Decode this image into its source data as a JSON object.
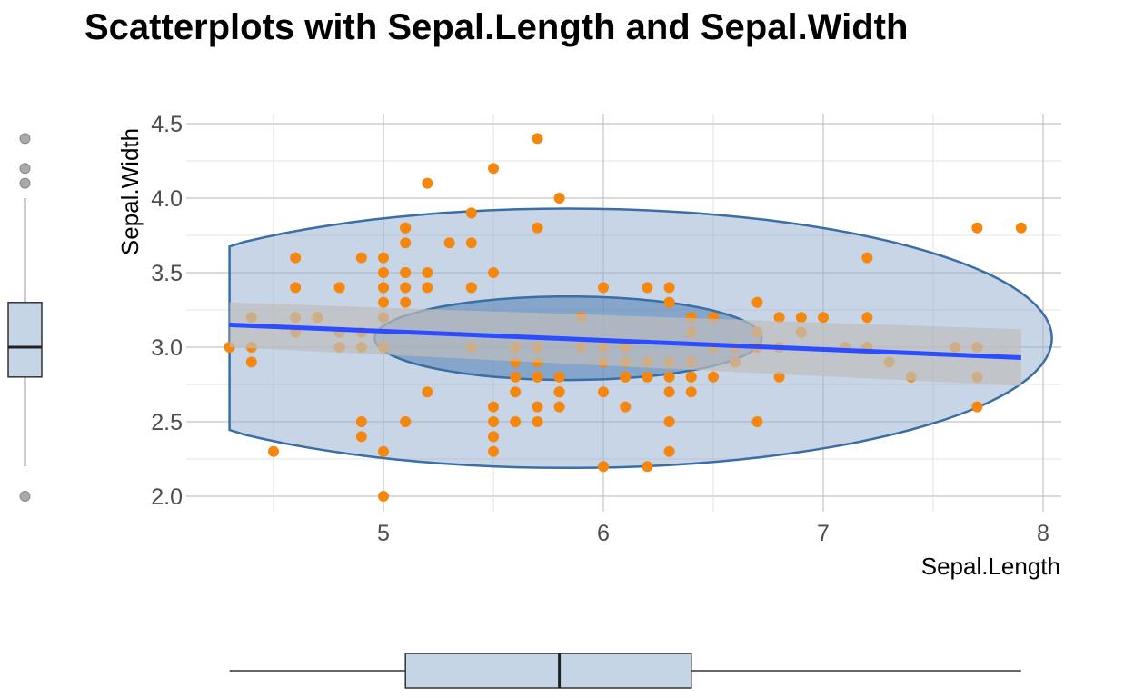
{
  "chart_data": {
    "type": "scatter",
    "title": "Scatterplots with Sepal.Length and Sepal.Width",
    "xlabel": "Sepal.Length",
    "ylabel": "Sepal.Width",
    "xlim": [
      4.2,
      8.05
    ],
    "ylim": [
      1.95,
      4.5
    ],
    "x_ticks": [
      "5",
      "6",
      "7",
      "8"
    ],
    "y_ticks": [
      "2.0",
      "2.5",
      "3.0",
      "3.5",
      "4.0",
      "4.5"
    ],
    "grid": true,
    "colors": {
      "points": "#f5870f",
      "ellipse_fill": "#9ab2d3",
      "ellipse_stroke": "#3a6ea5",
      "regression_line": "#2b4dff",
      "confidence_band": "#bdbdbd",
      "boxplot_fill": "#c5d5e6",
      "outlier": "#a9a9a9"
    },
    "points": [
      [
        5.1,
        3.5
      ],
      [
        4.9,
        3.0
      ],
      [
        4.7,
        3.2
      ],
      [
        4.6,
        3.1
      ],
      [
        5.0,
        3.6
      ],
      [
        5.4,
        3.9
      ],
      [
        4.6,
        3.4
      ],
      [
        5.0,
        3.4
      ],
      [
        4.4,
        2.9
      ],
      [
        4.9,
        3.1
      ],
      [
        5.4,
        3.7
      ],
      [
        4.8,
        3.4
      ],
      [
        4.8,
        3.0
      ],
      [
        4.3,
        3.0
      ],
      [
        5.8,
        4.0
      ],
      [
        5.7,
        4.4
      ],
      [
        5.4,
        3.9
      ],
      [
        5.1,
        3.5
      ],
      [
        5.7,
        3.8
      ],
      [
        5.1,
        3.8
      ],
      [
        5.4,
        3.4
      ],
      [
        5.1,
        3.7
      ],
      [
        4.6,
        3.6
      ],
      [
        5.1,
        3.3
      ],
      [
        4.8,
        3.4
      ],
      [
        5.0,
        3.0
      ],
      [
        5.0,
        3.4
      ],
      [
        5.2,
        3.5
      ],
      [
        5.2,
        3.4
      ],
      [
        4.7,
        3.2
      ],
      [
        4.8,
        3.1
      ],
      [
        5.4,
        3.4
      ],
      [
        5.2,
        4.1
      ],
      [
        5.5,
        4.2
      ],
      [
        4.9,
        3.1
      ],
      [
        5.0,
        3.2
      ],
      [
        5.5,
        3.5
      ],
      [
        4.9,
        3.6
      ],
      [
        4.4,
        3.0
      ],
      [
        5.1,
        3.4
      ],
      [
        5.0,
        3.5
      ],
      [
        4.5,
        2.3
      ],
      [
        4.4,
        3.2
      ],
      [
        5.0,
        3.5
      ],
      [
        5.1,
        3.8
      ],
      [
        4.8,
        3.0
      ],
      [
        5.1,
        3.8
      ],
      [
        4.6,
        3.2
      ],
      [
        5.3,
        3.7
      ],
      [
        5.0,
        3.3
      ],
      [
        7.0,
        3.2
      ],
      [
        6.4,
        3.2
      ],
      [
        6.9,
        3.1
      ],
      [
        5.5,
        2.3
      ],
      [
        6.5,
        2.8
      ],
      [
        5.7,
        2.8
      ],
      [
        6.3,
        3.3
      ],
      [
        4.9,
        2.4
      ],
      [
        6.6,
        2.9
      ],
      [
        5.2,
        2.7
      ],
      [
        5.0,
        2.0
      ],
      [
        5.9,
        3.0
      ],
      [
        6.0,
        2.2
      ],
      [
        6.1,
        2.9
      ],
      [
        5.6,
        2.9
      ],
      [
        6.7,
        3.1
      ],
      [
        5.6,
        3.0
      ],
      [
        5.8,
        2.7
      ],
      [
        6.2,
        2.2
      ],
      [
        5.6,
        2.5
      ],
      [
        5.9,
        3.2
      ],
      [
        6.1,
        2.8
      ],
      [
        6.3,
        2.5
      ],
      [
        6.1,
        2.8
      ],
      [
        6.4,
        2.9
      ],
      [
        6.6,
        3.0
      ],
      [
        6.8,
        2.8
      ],
      [
        6.7,
        3.0
      ],
      [
        6.0,
        2.9
      ],
      [
        5.7,
        2.6
      ],
      [
        5.5,
        2.4
      ],
      [
        5.5,
        2.4
      ],
      [
        5.8,
        2.7
      ],
      [
        6.0,
        2.7
      ],
      [
        5.4,
        3.0
      ],
      [
        6.0,
        3.4
      ],
      [
        6.7,
        3.1
      ],
      [
        6.3,
        2.3
      ],
      [
        5.6,
        3.0
      ],
      [
        5.5,
        2.5
      ],
      [
        5.5,
        2.6
      ],
      [
        6.1,
        3.0
      ],
      [
        5.8,
        2.6
      ],
      [
        5.0,
        2.3
      ],
      [
        5.6,
        2.7
      ],
      [
        5.7,
        3.0
      ],
      [
        5.7,
        2.9
      ],
      [
        6.2,
        2.9
      ],
      [
        5.1,
        2.5
      ],
      [
        5.7,
        2.8
      ],
      [
        6.3,
        3.3
      ],
      [
        5.8,
        2.7
      ],
      [
        7.1,
        3.0
      ],
      [
        6.3,
        2.9
      ],
      [
        6.5,
        3.0
      ],
      [
        7.6,
        3.0
      ],
      [
        4.9,
        2.5
      ],
      [
        7.3,
        2.9
      ],
      [
        6.7,
        2.5
      ],
      [
        7.2,
        3.6
      ],
      [
        6.5,
        3.2
      ],
      [
        6.4,
        2.7
      ],
      [
        6.8,
        3.0
      ],
      [
        5.7,
        2.5
      ],
      [
        5.8,
        2.8
      ],
      [
        6.4,
        3.2
      ],
      [
        6.5,
        3.0
      ],
      [
        7.7,
        3.8
      ],
      [
        7.7,
        2.6
      ],
      [
        6.0,
        2.2
      ],
      [
        6.9,
        3.2
      ],
      [
        5.6,
        2.8
      ],
      [
        7.7,
        2.8
      ],
      [
        6.3,
        2.7
      ],
      [
        6.7,
        3.3
      ],
      [
        7.2,
        3.2
      ],
      [
        6.2,
        2.8
      ],
      [
        6.1,
        3.0
      ],
      [
        6.4,
        2.8
      ],
      [
        7.2,
        3.0
      ],
      [
        7.4,
        2.8
      ],
      [
        7.9,
        3.8
      ],
      [
        6.4,
        2.8
      ],
      [
        6.3,
        2.8
      ],
      [
        6.1,
        2.6
      ],
      [
        7.7,
        3.0
      ],
      [
        6.3,
        3.4
      ],
      [
        6.4,
        3.1
      ],
      [
        6.0,
        3.0
      ],
      [
        6.9,
        3.1
      ],
      [
        6.7,
        3.1
      ],
      [
        6.9,
        3.1
      ],
      [
        5.8,
        2.7
      ],
      [
        6.8,
        3.2
      ],
      [
        6.7,
        3.3
      ],
      [
        6.7,
        3.0
      ],
      [
        6.3,
        2.5
      ],
      [
        6.5,
        3.0
      ],
      [
        6.2,
        3.4
      ],
      [
        5.9,
        3.0
      ]
    ],
    "regression": {
      "x_range": [
        4.3,
        7.9
      ],
      "y_at_start": 3.15,
      "y_at_end": 2.93,
      "band_at_start": [
        3.0,
        3.3
      ],
      "band_at_end": [
        2.74,
        3.12
      ]
    },
    "ellipses": {
      "center": [
        5.84,
        3.06
      ],
      "inner_semi_axes": [
        0.88,
        0.28
      ],
      "outer_semi_axes": [
        2.2,
        0.87
      ],
      "outer_clip_xmin": 4.3
    },
    "marginal_x_boxplot": {
      "min": 4.3,
      "q1": 5.1,
      "median": 5.8,
      "q3": 6.4,
      "max": 7.9
    },
    "marginal_y_boxplot": {
      "min": 2.2,
      "q1": 2.8,
      "median": 3.0,
      "q3": 3.3,
      "max": 4.0,
      "outliers": [
        4.4,
        4.2,
        4.1,
        2.0
      ]
    }
  }
}
